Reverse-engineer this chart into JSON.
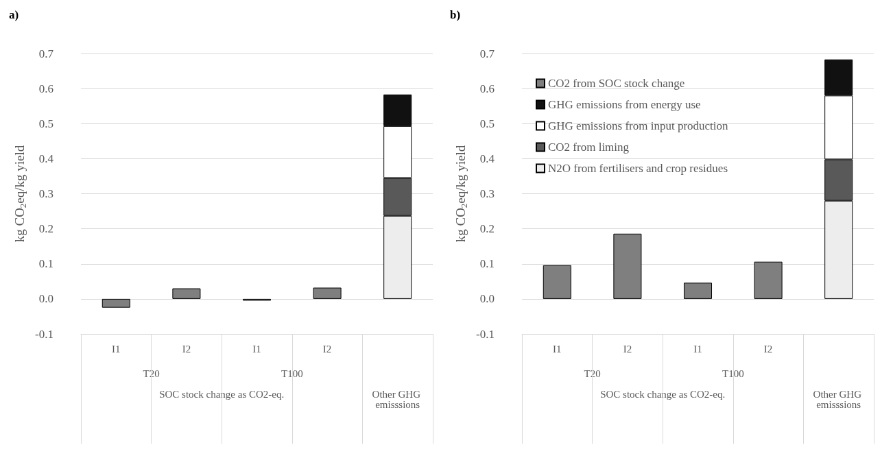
{
  "chart_data": [
    {
      "type": "bar",
      "title": "a)",
      "ylabel": "kg CO$_{2}$eq/kg yield",
      "categories": [
        "I1",
        "I2",
        "I1",
        "I2",
        null
      ],
      "stacked": true,
      "series": [
        {
          "color": "#7f7f7f",
          "values": [
            -0.025,
            0.03,
            -0.005,
            0.032,
            null
          ]
        },
        {
          "color": "#ededed",
          "values": [
            null,
            null,
            null,
            null,
            0.237
          ]
        },
        {
          "color": "#595959",
          "values": [
            null,
            null,
            null,
            null,
            0.108
          ]
        },
        {
          "color": "#ffffff",
          "values": [
            null,
            null,
            null,
            null,
            0.148
          ]
        },
        {
          "color": "#111111",
          "values": [
            null,
            null,
            null,
            null,
            0.09
          ]
        }
      ],
      "ylim": [
        -0.1,
        0.7
      ],
      "yticks": [
        {
          "value": -0.1,
          "label": "-0.1"
        },
        {
          "value": 0,
          "label": "0.0"
        },
        {
          "value": 0.1,
          "label": "0.1"
        },
        {
          "value": 0.2,
          "label": "0.2"
        },
        {
          "value": 0.3,
          "label": "0.3"
        },
        {
          "value": 0.4,
          "label": "0.4"
        },
        {
          "value": 0.5,
          "label": "0.5"
        },
        {
          "value": 0.6,
          "label": "0.6"
        },
        {
          "value": 0.7,
          "label": "0.7"
        }
      ],
      "grid": "y",
      "legend": false,
      "annotations": [
        "T20",
        "T100",
        "SOC stock change as CO2-eq.",
        "Other GHG emisssions"
      ]
    },
    {
      "type": "bar",
      "title": "b)",
      "ylabel": "kg CO$_{2}$eq/kg yield",
      "categories": [
        "I1",
        "I2",
        "I1",
        "I2",
        null
      ],
      "stacked": true,
      "series": [
        {
          "name": "CO2 from SOC stock change",
          "color": "#7f7f7f",
          "values": [
            0.096,
            0.186,
            0.046,
            0.106,
            null
          ]
        },
        {
          "name": "N2O from fertilisers and crop residues",
          "color": "#ededed",
          "values": [
            null,
            null,
            null,
            null,
            0.28
          ]
        },
        {
          "name": "CO2 from liming",
          "color": "#595959",
          "values": [
            null,
            null,
            null,
            null,
            0.118
          ]
        },
        {
          "name": "GHG emissions from input production",
          "color": "#ffffff",
          "values": [
            null,
            null,
            null,
            null,
            0.182
          ]
        },
        {
          "name": "GHG emissions from energy use",
          "color": "#111111",
          "values": [
            null,
            null,
            null,
            null,
            0.103
          ]
        }
      ],
      "ylim": [
        -0.1,
        0.7
      ],
      "yticks": [
        {
          "value": -0.1,
          "label": "-0.1"
        },
        {
          "value": 0,
          "label": "0.0"
        },
        {
          "value": 0.1,
          "label": "0.1"
        },
        {
          "value": 0.2,
          "label": "0.2"
        },
        {
          "value": 0.3,
          "label": "0.3"
        },
        {
          "value": 0.4,
          "label": "0.4"
        },
        {
          "value": 0.5,
          "label": "0.5"
        },
        {
          "value": 0.6,
          "label": "0.6"
        },
        {
          "value": 0.7,
          "label": "0.7"
        }
      ],
      "grid": "y",
      "legend": "top left",
      "annotations": [
        "T20",
        "T100",
        "SOC stock change as CO2-eq.",
        "Other GHG emisssions"
      ]
    }
  ]
}
